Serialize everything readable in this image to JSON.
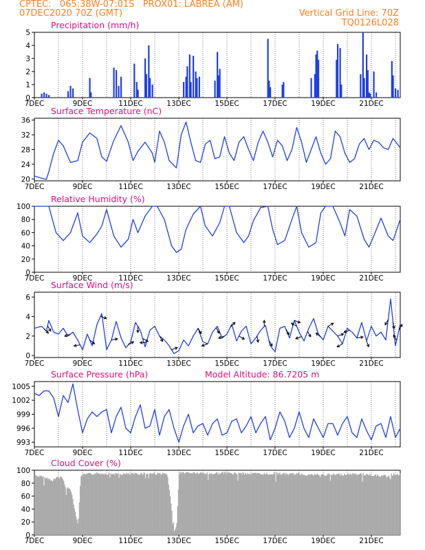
{
  "header": {
    "line1_left": "CPTEC:   065:38W-07:01S   PROX01: LABREA (AM)",
    "line2_left": "07DEC2020 70Z (GMT)",
    "line2_right": "Vertical Grid Line: 70Z",
    "line3_right": "TQ0126L028"
  },
  "colors": {
    "header": "#ff7f1f",
    "panel_title": "#e0107a",
    "series": "#1f3fe6",
    "cloud": "#aaaaaa",
    "axis": "#000000"
  },
  "x_tick_labels": [
    "7DEC",
    "9DEC",
    "11DEC",
    "13DEC",
    "15DEC",
    "17DEC",
    "19DEC",
    "21DEC"
  ],
  "chart_data": [
    {
      "type": "bar",
      "title": "Precipitation (mm/h)",
      "x_start_day": 7,
      "x_end_day": 22.2,
      "ylim": [
        0,
        5
      ],
      "yticks": [
        "0",
        "1",
        "2",
        "3",
        "4",
        "5"
      ],
      "bars": [
        {
          "day": 7.3,
          "v": 0.3
        },
        {
          "day": 7.4,
          "v": 0.4
        },
        {
          "day": 7.5,
          "v": 0.3
        },
        {
          "day": 7.6,
          "v": 0.2
        },
        {
          "day": 8.4,
          "v": 0.5
        },
        {
          "day": 8.5,
          "v": 0.9
        },
        {
          "day": 8.6,
          "v": 0.7
        },
        {
          "day": 9.3,
          "v": 1.5
        },
        {
          "day": 9.35,
          "v": 0.4
        },
        {
          "day": 10.3,
          "v": 2.3
        },
        {
          "day": 10.4,
          "v": 2.1
        },
        {
          "day": 10.5,
          "v": 0.9
        },
        {
          "day": 10.6,
          "v": 1.6
        },
        {
          "day": 11.15,
          "v": 2.6
        },
        {
          "day": 11.25,
          "v": 1.2
        },
        {
          "day": 11.3,
          "v": 0.6
        },
        {
          "day": 11.6,
          "v": 3.0
        },
        {
          "day": 11.65,
          "v": 1.8
        },
        {
          "day": 11.75,
          "v": 4.0
        },
        {
          "day": 11.8,
          "v": 1.5
        },
        {
          "day": 11.9,
          "v": 1.0
        },
        {
          "day": 13.2,
          "v": 1.2
        },
        {
          "day": 13.3,
          "v": 1.6
        },
        {
          "day": 13.35,
          "v": 2.4
        },
        {
          "day": 13.45,
          "v": 3.3
        },
        {
          "day": 13.5,
          "v": 1.2
        },
        {
          "day": 13.6,
          "v": 3.2
        },
        {
          "day": 13.7,
          "v": 2.0
        },
        {
          "day": 13.75,
          "v": 1.5
        },
        {
          "day": 13.85,
          "v": 1.6
        },
        {
          "day": 14.5,
          "v": 1.3
        },
        {
          "day": 14.6,
          "v": 3.5
        },
        {
          "day": 14.65,
          "v": 1.7
        },
        {
          "day": 14.7,
          "v": 2.2
        },
        {
          "day": 16.7,
          "v": 4.5
        },
        {
          "day": 16.75,
          "v": 1.3
        },
        {
          "day": 16.8,
          "v": 0.8
        },
        {
          "day": 17.3,
          "v": 1.0
        },
        {
          "day": 17.35,
          "v": 1.2
        },
        {
          "day": 18.5,
          "v": 1.5
        },
        {
          "day": 18.65,
          "v": 1.8
        },
        {
          "day": 18.7,
          "v": 3.3
        },
        {
          "day": 18.75,
          "v": 3.6
        },
        {
          "day": 18.8,
          "v": 2.9
        },
        {
          "day": 19.55,
          "v": 2.9
        },
        {
          "day": 19.6,
          "v": 4.1
        },
        {
          "day": 19.7,
          "v": 3.8
        },
        {
          "day": 19.75,
          "v": 1.0
        },
        {
          "day": 20.55,
          "v": 1.8
        },
        {
          "day": 20.65,
          "v": 5.0
        },
        {
          "day": 20.7,
          "v": 1.5
        },
        {
          "day": 20.8,
          "v": 3.3
        },
        {
          "day": 20.85,
          "v": 2.1
        },
        {
          "day": 20.9,
          "v": 0.4
        },
        {
          "day": 20.95,
          "v": 0.3
        },
        {
          "day": 21.1,
          "v": 2.0
        },
        {
          "day": 21.2,
          "v": 0.4
        },
        {
          "day": 21.85,
          "v": 2.8
        },
        {
          "day": 21.9,
          "v": 1.7
        },
        {
          "day": 22.0,
          "v": 0.7
        },
        {
          "day": 22.1,
          "v": 0.6
        }
      ]
    },
    {
      "type": "line",
      "title": "Surface Temperature (nC)",
      "x_start_day": 7,
      "x_end_day": 22.2,
      "ylim": [
        19.5,
        36.5
      ],
      "yticks": [
        "20",
        "24",
        "28",
        "32",
        "36"
      ],
      "ytick_values": [
        20,
        24,
        28,
        32,
        36
      ],
      "x": [
        7.0,
        7.3,
        7.5,
        7.6,
        7.8,
        8.0,
        8.2,
        8.5,
        8.8,
        9.0,
        9.3,
        9.6,
        9.8,
        10.0,
        10.3,
        10.6,
        10.9,
        11.1,
        11.3,
        11.6,
        11.9,
        12.0,
        12.2,
        12.4,
        12.6,
        12.9,
        13.1,
        13.3,
        13.5,
        13.7,
        13.9,
        14.1,
        14.3,
        14.5,
        14.7,
        14.9,
        15.1,
        15.3,
        15.5,
        15.7,
        15.9,
        16.1,
        16.3,
        16.5,
        16.7,
        16.9,
        17.1,
        17.3,
        17.5,
        17.7,
        17.9,
        18.1,
        18.3,
        18.5,
        18.7,
        18.9,
        19.1,
        19.3,
        19.5,
        19.7,
        19.9,
        20.1,
        20.3,
        20.5,
        20.7,
        20.9,
        21.1,
        21.3,
        21.5,
        21.7,
        21.9,
        22.2
      ],
      "y": [
        20.8,
        20.2,
        19.9,
        22.0,
        27.0,
        30.5,
        29.0,
        24.5,
        25.0,
        30.0,
        32.5,
        31.0,
        26.0,
        24.8,
        30.5,
        34.5,
        30.0,
        25.0,
        27.5,
        30.0,
        27.0,
        24.5,
        33.0,
        30.0,
        25.0,
        23.0,
        32.0,
        35.5,
        30.0,
        25.0,
        24.5,
        29.5,
        30.5,
        25.5,
        26.0,
        31.5,
        27.0,
        25.0,
        30.0,
        31.5,
        28.0,
        25.0,
        30.0,
        33.0,
        30.0,
        26.0,
        30.5,
        29.0,
        25.0,
        28.0,
        34.0,
        30.0,
        24.5,
        28.0,
        31.5,
        27.0,
        24.0,
        25.5,
        33.0,
        31.5,
        27.0,
        24.5,
        25.5,
        29.5,
        31.0,
        28.0,
        30.5,
        30.0,
        28.5,
        28.0,
        31.0,
        28.5
      ]
    },
    {
      "type": "line",
      "title": "Relative Humidity (%)",
      "x_start_day": 7,
      "x_end_day": 22.2,
      "ylim": [
        0,
        100
      ],
      "yticks": [
        "0",
        "20",
        "40",
        "60",
        "80",
        "100"
      ],
      "ytick_values": [
        0,
        20,
        40,
        60,
        80,
        100
      ],
      "x": [
        7.0,
        7.4,
        7.6,
        7.9,
        8.2,
        8.5,
        8.8,
        9.0,
        9.3,
        9.6,
        9.8,
        10.0,
        10.3,
        10.6,
        10.9,
        11.1,
        11.3,
        11.6,
        11.9,
        12.1,
        12.4,
        12.7,
        12.9,
        13.1,
        13.3,
        13.6,
        13.9,
        14.1,
        14.4,
        14.7,
        14.9,
        15.1,
        15.4,
        15.7,
        15.9,
        16.1,
        16.4,
        16.7,
        16.9,
        17.1,
        17.4,
        17.7,
        17.9,
        18.1,
        18.4,
        18.7,
        18.9,
        19.1,
        19.4,
        19.7,
        19.9,
        20.1,
        20.4,
        20.7,
        20.9,
        21.1,
        21.4,
        21.7,
        21.9,
        22.2
      ],
      "y": [
        100,
        100,
        100,
        60,
        48,
        60,
        90,
        55,
        45,
        58,
        70,
        95,
        55,
        38,
        50,
        80,
        60,
        85,
        100,
        100,
        80,
        40,
        30,
        35,
        65,
        88,
        100,
        70,
        55,
        75,
        100,
        100,
        60,
        45,
        55,
        78,
        98,
        100,
        65,
        42,
        48,
        80,
        100,
        60,
        38,
        45,
        90,
        100,
        100,
        75,
        55,
        95,
        85,
        50,
        38,
        55,
        82,
        55,
        48,
        80
      ]
    },
    {
      "type": "line",
      "title": "Surface Wind (m/s)",
      "x_start_day": 7,
      "x_end_day": 22.2,
      "ylim": [
        -0.2,
        6.5
      ],
      "yticks": [
        "0",
        "2",
        "4",
        "6"
      ],
      "ytick_values": [
        0,
        2,
        4,
        6
      ],
      "x": [
        7.0,
        7.3,
        7.5,
        7.6,
        7.8,
        8.0,
        8.2,
        8.4,
        8.6,
        8.8,
        9.0,
        9.2,
        9.4,
        9.6,
        9.8,
        10.0,
        10.2,
        10.4,
        10.6,
        10.8,
        11.0,
        11.2,
        11.4,
        11.6,
        11.8,
        12.0,
        12.2,
        12.4,
        12.6,
        12.8,
        13.0,
        13.2,
        13.4,
        13.6,
        13.8,
        14.0,
        14.2,
        14.4,
        14.6,
        14.8,
        15.0,
        15.2,
        15.4,
        15.6,
        15.8,
        16.0,
        16.2,
        16.4,
        16.6,
        16.8,
        17.0,
        17.2,
        17.4,
        17.6,
        17.8,
        18.0,
        18.2,
        18.4,
        18.6,
        18.8,
        19.0,
        19.2,
        19.4,
        19.6,
        19.8,
        20.0,
        20.2,
        20.4,
        20.6,
        20.8,
        21.0,
        21.2,
        21.4,
        21.6,
        21.8,
        22.0,
        22.2
      ],
      "y": [
        2.8,
        3.0,
        2.5,
        3.6,
        2.4,
        2.2,
        2.8,
        2.0,
        2.4,
        1.6,
        0.6,
        2.2,
        1.0,
        3.2,
        4.3,
        0.6,
        1.6,
        3.5,
        1.8,
        0.8,
        1.4,
        3.4,
        2.6,
        0.9,
        2.6,
        3.0,
        2.0,
        1.6,
        1.0,
        0.2,
        0.5,
        1.6,
        1.0,
        2.0,
        2.8,
        1.4,
        1.2,
        2.4,
        3.0,
        1.8,
        2.2,
        3.2,
        1.5,
        2.5,
        3.0,
        1.2,
        1.8,
        2.6,
        3.1,
        1.0,
        0.4,
        2.8,
        3.0,
        1.8,
        3.6,
        2.4,
        1.5,
        2.8,
        3.8,
        2.2,
        1.6,
        3.0,
        2.5,
        2.0,
        1.2,
        2.8,
        2.4,
        1.8,
        3.4,
        1.5,
        3.0,
        2.0,
        2.4,
        1.6,
        5.8,
        1.0,
        3.2
      ],
      "arrows": [
        {
          "day": 7.4,
          "dir": 315
        },
        {
          "day": 7.55,
          "dir": 300
        },
        {
          "day": 8.5,
          "dir": 200
        },
        {
          "day": 8.9,
          "dir": 190
        },
        {
          "day": 9.3,
          "dir": 320
        },
        {
          "day": 9.75,
          "dir": 340
        },
        {
          "day": 10.2,
          "dir": 10
        },
        {
          "day": 10.9,
          "dir": 30
        },
        {
          "day": 11.3,
          "dir": 270
        },
        {
          "day": 11.5,
          "dir": 330
        },
        {
          "day": 11.65,
          "dir": 180
        },
        {
          "day": 12.2,
          "dir": 300
        },
        {
          "day": 12.7,
          "dir": 20
        },
        {
          "day": 13.8,
          "dir": 300
        },
        {
          "day": 14.2,
          "dir": 200
        },
        {
          "day": 14.55,
          "dir": 300
        },
        {
          "day": 14.9,
          "dir": 200
        },
        {
          "day": 15.15,
          "dir": 45
        },
        {
          "day": 15.5,
          "dir": 330
        },
        {
          "day": 16.25,
          "dir": 280
        },
        {
          "day": 16.55,
          "dir": 90
        },
        {
          "day": 16.75,
          "dir": 300
        },
        {
          "day": 17.45,
          "dir": 300
        },
        {
          "day": 17.8,
          "dir": 340
        },
        {
          "day": 17.9,
          "dir": 150
        },
        {
          "day": 18.1,
          "dir": 200
        },
        {
          "day": 18.35,
          "dir": 300
        },
        {
          "day": 18.9,
          "dir": 140
        },
        {
          "day": 19.2,
          "dir": 30
        },
        {
          "day": 19.6,
          "dir": 20
        },
        {
          "day": 19.8,
          "dir": 210
        },
        {
          "day": 20.1,
          "dir": 200
        },
        {
          "day": 20.4,
          "dir": 10
        },
        {
          "day": 20.8,
          "dir": 290
        },
        {
          "day": 21.7,
          "dir": 240
        },
        {
          "day": 21.9,
          "dir": 280
        },
        {
          "day": 22.05,
          "dir": 120
        },
        {
          "day": 22.15,
          "dir": 60
        }
      ]
    },
    {
      "type": "line",
      "title": "Surface Pressure (hPa)",
      "annotation": "Model Altitude: 86.7205 m",
      "x_start_day": 7,
      "x_end_day": 22.2,
      "ylim": [
        992,
        1006
      ],
      "yticks": [
        "993",
        "996",
        "999",
        "1002",
        "1005"
      ],
      "ytick_values": [
        993,
        996,
        999,
        1002,
        1005
      ],
      "x": [
        7.0,
        7.2,
        7.4,
        7.6,
        7.8,
        8.0,
        8.2,
        8.4,
        8.6,
        8.8,
        9.0,
        9.2,
        9.4,
        9.6,
        9.8,
        10.0,
        10.2,
        10.4,
        10.6,
        10.8,
        11.0,
        11.2,
        11.4,
        11.6,
        11.8,
        12.0,
        12.2,
        12.4,
        12.6,
        12.8,
        13.0,
        13.2,
        13.4,
        13.6,
        13.8,
        14.0,
        14.2,
        14.4,
        14.6,
        14.8,
        15.0,
        15.2,
        15.4,
        15.6,
        15.8,
        16.0,
        16.2,
        16.4,
        16.6,
        16.8,
        17.0,
        17.2,
        17.4,
        17.6,
        17.8,
        18.0,
        18.2,
        18.4,
        18.6,
        18.8,
        19.0,
        19.2,
        19.4,
        19.6,
        19.8,
        20.0,
        20.2,
        20.4,
        20.6,
        20.8,
        21.0,
        21.2,
        21.4,
        21.6,
        21.8,
        22.0,
        22.2
      ],
      "y": [
        1003.5,
        1003.0,
        1004.0,
        1004.0,
        1002.5,
        998.5,
        1003.0,
        1001.5,
        1005.5,
        1000.0,
        995.0,
        998.0,
        999.5,
        998.5,
        999.5,
        1000.0,
        995.0,
        998.5,
        1000.5,
        996.0,
        995.0,
        998.5,
        1001.0,
        996.0,
        996.5,
        1000.0,
        994.5,
        998.5,
        1000.0,
        996.0,
        993.0,
        996.5,
        999.0,
        995.0,
        996.5,
        997.0,
        994.5,
        997.0,
        998.0,
        994.5,
        995.0,
        997.5,
        998.0,
        995.0,
        996.5,
        998.5,
        995.0,
        997.0,
        998.5,
        993.5,
        996.0,
        999.5,
        997.5,
        994.0,
        996.0,
        999.5,
        996.0,
        994.0,
        998.0,
        996.0,
        994.0,
        997.0,
        997.0,
        994.5,
        997.0,
        998.5,
        995.0,
        994.0,
        998.0,
        995.5,
        993.5,
        996.5,
        997.0,
        994.0,
        998.5,
        994.0,
        996.0
      ]
    },
    {
      "type": "bar",
      "title": "Cloud Cover (%)",
      "x_start_day": 7,
      "x_end_day": 22.2,
      "ylim": [
        0,
        100
      ],
      "yticks": [
        "0",
        "20",
        "40",
        "60",
        "80",
        "100"
      ],
      "ytick_values": [
        0,
        20,
        40,
        60,
        80,
        100
      ],
      "profile": [
        {
          "day": 7.0,
          "v": 94
        },
        {
          "day": 7.5,
          "v": 90
        },
        {
          "day": 7.7,
          "v": 86
        },
        {
          "day": 7.9,
          "v": 90
        },
        {
          "day": 8.1,
          "v": 93
        },
        {
          "day": 8.3,
          "v": 75
        },
        {
          "day": 8.5,
          "v": 72
        },
        {
          "day": 8.8,
          "v": 15
        },
        {
          "day": 8.9,
          "v": 90
        },
        {
          "day": 9.0,
          "v": 95
        },
        {
          "day": 9.5,
          "v": 97
        },
        {
          "day": 10.0,
          "v": 97
        },
        {
          "day": 10.5,
          "v": 96
        },
        {
          "day": 11.0,
          "v": 96
        },
        {
          "day": 11.5,
          "v": 97
        },
        {
          "day": 12.0,
          "v": 97
        },
        {
          "day": 12.5,
          "v": 96
        },
        {
          "day": 12.8,
          "v": 8
        },
        {
          "day": 12.9,
          "v": 20
        },
        {
          "day": 13.0,
          "v": 98
        },
        {
          "day": 13.5,
          "v": 98
        },
        {
          "day": 14.0,
          "v": 97
        },
        {
          "day": 14.5,
          "v": 97
        },
        {
          "day": 15.0,
          "v": 98
        },
        {
          "day": 15.5,
          "v": 97
        },
        {
          "day": 16.0,
          "v": 97
        },
        {
          "day": 16.5,
          "v": 96
        },
        {
          "day": 17.0,
          "v": 97
        },
        {
          "day": 17.5,
          "v": 96
        },
        {
          "day": 18.0,
          "v": 96
        },
        {
          "day": 18.5,
          "v": 95
        },
        {
          "day": 19.0,
          "v": 95
        },
        {
          "day": 19.5,
          "v": 95
        },
        {
          "day": 20.0,
          "v": 96
        },
        {
          "day": 20.5,
          "v": 96
        },
        {
          "day": 21.0,
          "v": 95
        },
        {
          "day": 21.5,
          "v": 93
        },
        {
          "day": 22.0,
          "v": 96
        },
        {
          "day": 22.2,
          "v": 96
        }
      ]
    }
  ]
}
